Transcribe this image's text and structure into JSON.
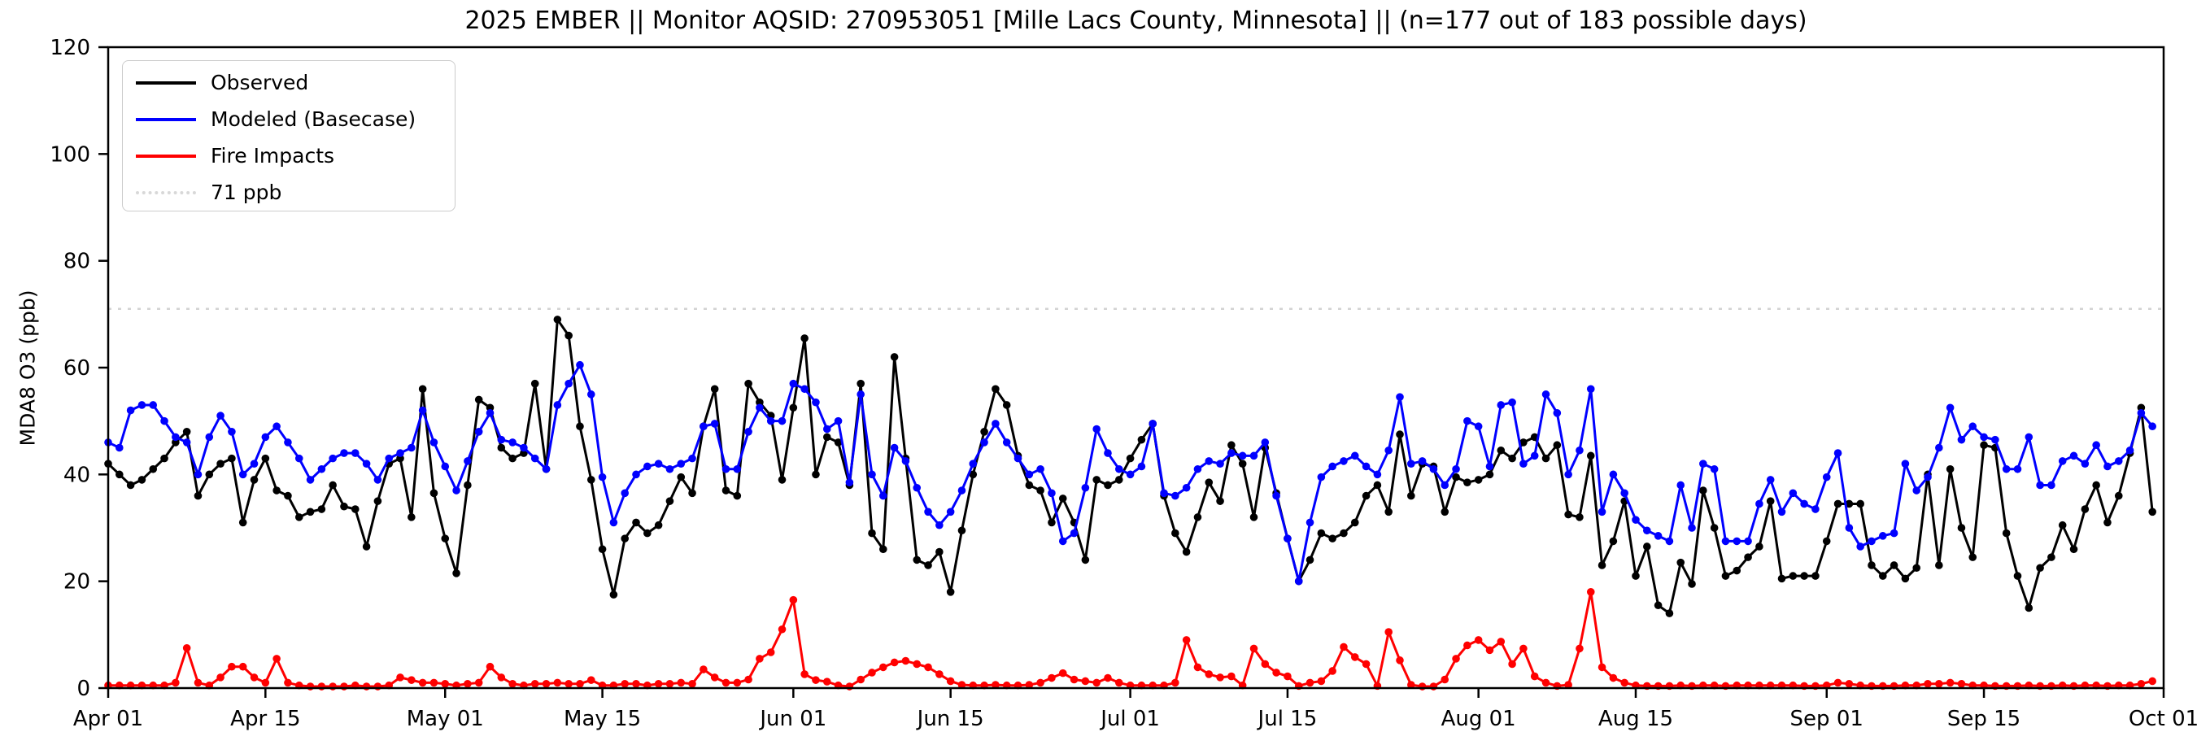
{
  "title": "2025 EMBER || Monitor AQSID: 270953051 [Mille Lacs County, Minnesota] || (n=177 out of 183 possible days)",
  "axes": {
    "ylabel": "MDA8 O3 (ppb)",
    "ylim": [
      0,
      120
    ],
    "x_start_label": "Apr 01",
    "x_end_label": "Oct 01"
  },
  "legend": {
    "items": [
      {
        "label": "Observed",
        "color": "#000000",
        "style": "solid"
      },
      {
        "label": "Modeled (Basecase)",
        "color": "#0000ff",
        "style": "solid"
      },
      {
        "label": "Fire Impacts",
        "color": "#ff0000",
        "style": "solid"
      },
      {
        "label": "71 ppb",
        "color": "#d8d8d8",
        "style": "dotted"
      }
    ]
  },
  "colors": {
    "observed": "#000000",
    "modeled": "#0000ff",
    "fire": "#ff0000",
    "reference": "#d3d3d3",
    "axis": "#000000"
  },
  "chart_data": {
    "type": "line",
    "title": "2025 EMBER || Monitor AQSID: 270953051 [Mille Lacs County, Minnesota] || (n=177 out of 183 possible days)",
    "xlabel": "",
    "ylabel": "MDA8 O3 (ppb)",
    "ylim": [
      0,
      120
    ],
    "y_ticks": [
      0,
      20,
      40,
      60,
      80,
      100,
      120
    ],
    "x_unit": "day index from Apr 01 (daily values, Apr 01 - Sep 30)",
    "n_days": 183,
    "x_ticks": [
      {
        "label": "Apr 01",
        "day": 0
      },
      {
        "label": "Apr 15",
        "day": 14
      },
      {
        "label": "May 01",
        "day": 30
      },
      {
        "label": "May 15",
        "day": 44
      },
      {
        "label": "Jun 01",
        "day": 61
      },
      {
        "label": "Jun 15",
        "day": 75
      },
      {
        "label": "Jul 01",
        "day": 91
      },
      {
        "label": "Jul 15",
        "day": 105
      },
      {
        "label": "Aug 01",
        "day": 122
      },
      {
        "label": "Aug 15",
        "day": 136
      },
      {
        "label": "Sep 01",
        "day": 153
      },
      {
        "label": "Sep 15",
        "day": 167
      },
      {
        "label": "Oct 01",
        "day": 183
      }
    ],
    "reference_line": {
      "label": "71 ppb",
      "value": 71
    },
    "legend_position": "upper left",
    "grid": false,
    "values_are_approximate": true,
    "series": [
      {
        "name": "Observed",
        "color": "#000000",
        "values": [
          42,
          40,
          38,
          39,
          41,
          43,
          46,
          48,
          36,
          40,
          42,
          43,
          31,
          39,
          43,
          37,
          36,
          32,
          33,
          33.5,
          38,
          34,
          33.5,
          26.5,
          35,
          42,
          43,
          32,
          56,
          36.5,
          28,
          21.5,
          38,
          54,
          52.5,
          45,
          43,
          44,
          57,
          41,
          69,
          66,
          49,
          39,
          26,
          17.5,
          28,
          31,
          29,
          30.5,
          35,
          39.5,
          36.5,
          49,
          56,
          37,
          36,
          57,
          53.5,
          51,
          39,
          52.5,
          65.5,
          40,
          47,
          46,
          38,
          57,
          29,
          26,
          62,
          43,
          24,
          23,
          25.5,
          18,
          29.5,
          40,
          48,
          56,
          53,
          43.5,
          38,
          37,
          31,
          35.5,
          31,
          24,
          39,
          38,
          39,
          43,
          46.5,
          49.5,
          36,
          29,
          25.5,
          32,
          38.5,
          35,
          45.5,
          42,
          32,
          45,
          36.5,
          28,
          20,
          24,
          29,
          28,
          29,
          31,
          36,
          38,
          33,
          47.5,
          36,
          42,
          41.5,
          33,
          39.5,
          38.5,
          39,
          40,
          44.5,
          43,
          46,
          47,
          43,
          45.5,
          32.5,
          32,
          43.5,
          23,
          27.5,
          35,
          21,
          26.5,
          15.5,
          14,
          23.5,
          19.5,
          37,
          30,
          21,
          22,
          24.5,
          26.5,
          35,
          20.5,
          21,
          21,
          21,
          27.5,
          34.5,
          34.5,
          34.5,
          23,
          21,
          23,
          20.5,
          22.5,
          40,
          23,
          41,
          30,
          24.5,
          45.5,
          45,
          29,
          21,
          15,
          22.5,
          24.5,
          30.5,
          26,
          33.5,
          38,
          31,
          36,
          44,
          52.5,
          33
        ]
      },
      {
        "name": "Modeled (Basecase)",
        "color": "#0000ff",
        "values": [
          46,
          45,
          52,
          53,
          53,
          50,
          47,
          46,
          40,
          47,
          51,
          48,
          40,
          42,
          47,
          49,
          46,
          43,
          39,
          41,
          43,
          44,
          44,
          42,
          39,
          43,
          44,
          45,
          52,
          46,
          41.5,
          37,
          42.5,
          48,
          51.5,
          46.5,
          46,
          45,
          43,
          41,
          53,
          57,
          60.5,
          55,
          39.5,
          31,
          36.5,
          40,
          41.5,
          42,
          41,
          42,
          43,
          49,
          49.5,
          41,
          41,
          48,
          52.5,
          50,
          50,
          57,
          56,
          53.5,
          48.5,
          50,
          38.5,
          55,
          40,
          36,
          45,
          42.5,
          37.5,
          33,
          30.5,
          33,
          37,
          42,
          46,
          49.5,
          46,
          43,
          40,
          41,
          36.5,
          27.5,
          29,
          37.5,
          48.5,
          44,
          41,
          40,
          41.5,
          49.5,
          36.5,
          36,
          37.5,
          41,
          42.5,
          42,
          44,
          43.5,
          43.5,
          46,
          36,
          28,
          20,
          31,
          39.5,
          41.5,
          42.5,
          43.5,
          41.5,
          40,
          44.5,
          54.5,
          42,
          42.5,
          41,
          38,
          41,
          50,
          49,
          41.5,
          53,
          53.5,
          42,
          43.5,
          55,
          51.5,
          40,
          44.5,
          56,
          33,
          40,
          36.5,
          31.5,
          29.5,
          28.5,
          27.5,
          38,
          30,
          42,
          41,
          27.5,
          27.5,
          27.5,
          34.5,
          39,
          33,
          36.5,
          34.5,
          33.5,
          39.5,
          44,
          30,
          26.5,
          27.5,
          28.5,
          29,
          42,
          37,
          39.5,
          45,
          52.5,
          46.5,
          49,
          47,
          46.5,
          41,
          41,
          47,
          38,
          38,
          42.5,
          43.5,
          42,
          45.5,
          41.5,
          42.5,
          44.5,
          51.5,
          49
        ]
      },
      {
        "name": "Fire Impacts",
        "color": "#ff0000",
        "values": [
          0.5,
          0.5,
          0.5,
          0.5,
          0.5,
          0.5,
          1,
          7.5,
          1,
          0.5,
          2,
          4,
          4,
          2,
          1,
          5.5,
          1,
          0.5,
          0.3,
          0.3,
          0.3,
          0.3,
          0.5,
          0.3,
          0.3,
          0.5,
          2,
          1.5,
          1,
          1,
          0.8,
          0.5,
          0.8,
          1,
          4,
          2,
          0.8,
          0.5,
          0.8,
          0.8,
          1,
          0.8,
          0.8,
          1.5,
          0.5,
          0.5,
          0.8,
          0.8,
          0.5,
          0.8,
          0.8,
          1,
          0.8,
          3.5,
          2,
          1,
          1,
          1.6,
          5.5,
          6.7,
          11,
          16.5,
          2.6,
          1.5,
          1.2,
          0.5,
          0.3,
          1.6,
          2.9,
          3.9,
          4.8,
          5.1,
          4.5,
          3.9,
          2.6,
          1.3,
          0.6,
          0.5,
          0.5,
          0.6,
          0.5,
          0.5,
          0.6,
          1,
          1.9,
          2.8,
          1.6,
          1.3,
          1,
          1.9,
          1,
          0.5,
          0.5,
          0.5,
          0.5,
          1,
          9,
          3.9,
          2.6,
          2,
          2.2,
          0.5,
          7.4,
          4.5,
          2.9,
          2.2,
          0.4,
          1,
          1.3,
          3.2,
          7.7,
          5.8,
          4.5,
          0.4,
          10.5,
          5.2,
          0.6,
          0.3,
          0.3,
          1.6,
          5.5,
          8,
          9,
          7.1,
          8.7,
          4.5,
          7.4,
          2.2,
          1,
          0.4,
          0.6,
          7.4,
          18,
          3.9,
          1.9,
          1,
          0.5,
          0.4,
          0.4,
          0.4,
          0.5,
          0.4,
          0.5,
          0.5,
          0.4,
          0.5,
          0.5,
          0.5,
          0.5,
          0.5,
          0.5,
          0.4,
          0.4,
          0.5,
          1,
          0.8,
          0.5,
          0.4,
          0.4,
          0.4,
          0.5,
          0.5,
          0.8,
          0.8,
          1,
          0.8,
          0.5,
          0.5,
          0.4,
          0.4,
          0.4,
          0.5,
          0.4,
          0.4,
          0.5,
          0.4,
          0.5,
          0.5,
          0.4,
          0.5,
          0.5,
          0.8,
          1.3
        ]
      }
    ]
  }
}
